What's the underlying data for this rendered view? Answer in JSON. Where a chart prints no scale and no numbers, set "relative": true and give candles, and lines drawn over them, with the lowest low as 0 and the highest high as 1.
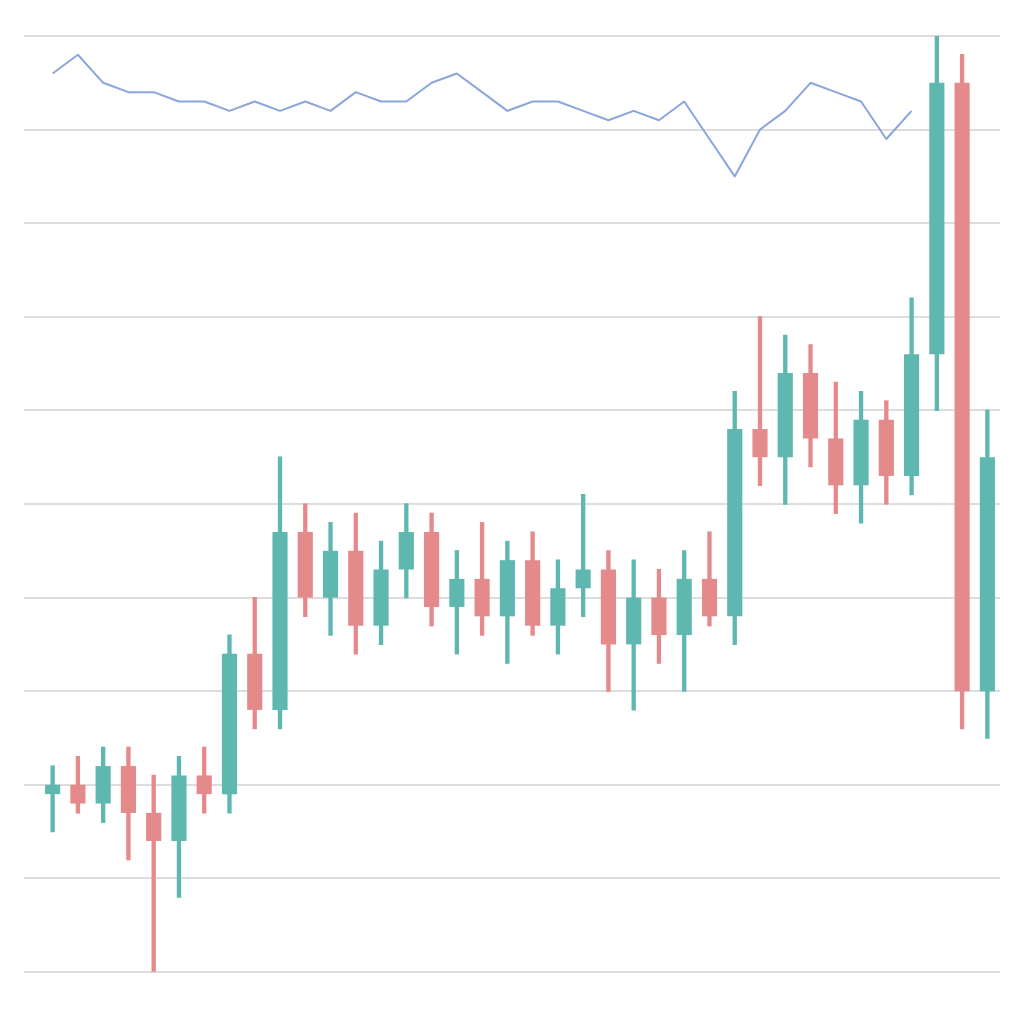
{
  "chart_data": {
    "type": "candlestick",
    "relative": true,
    "grid": "y",
    "categories": [
      null,
      null,
      null,
      null,
      null,
      null,
      null,
      null,
      null,
      null,
      null,
      null,
      null,
      null,
      null,
      null,
      null,
      null,
      null,
      null,
      null,
      null,
      null,
      null,
      null,
      null,
      null,
      null,
      null,
      null,
      null,
      null,
      null,
      null,
      null,
      null,
      null,
      null
    ],
    "ohlc": [
      [
        0.19,
        0.22,
        0.15,
        0.2
      ],
      [
        0.2,
        0.23,
        0.17,
        0.18
      ],
      [
        0.18,
        0.24,
        0.16,
        0.22
      ],
      [
        0.22,
        0.24,
        0.12,
        0.17
      ],
      [
        0.17,
        0.21,
        0,
        0.14
      ],
      [
        0.14,
        0.23,
        0.08,
        0.21
      ],
      [
        0.21,
        0.24,
        0.17,
        0.19
      ],
      [
        0.19,
        0.36,
        0.17,
        0.34
      ],
      [
        0.34,
        0.4,
        0.26,
        0.28
      ],
      [
        0.28,
        0.55,
        0.26,
        0.47
      ],
      [
        0.47,
        0.5,
        0.38,
        0.4
      ],
      [
        0.4,
        0.48,
        0.36,
        0.45
      ],
      [
        0.45,
        0.49,
        0.34,
        0.37
      ],
      [
        0.37,
        0.46,
        0.35,
        0.43
      ],
      [
        0.43,
        0.5,
        0.4,
        0.47
      ],
      [
        0.47,
        0.49,
        0.37,
        0.39
      ],
      [
        0.39,
        0.45,
        0.34,
        0.42
      ],
      [
        0.42,
        0.48,
        0.36,
        0.38
      ],
      [
        0.38,
        0.46,
        0.33,
        0.44
      ],
      [
        0.44,
        0.47,
        0.36,
        0.37
      ],
      [
        0.37,
        0.44,
        0.34,
        0.41
      ],
      [
        0.41,
        0.51,
        0.38,
        0.43
      ],
      [
        0.43,
        0.45,
        0.3,
        0.35
      ],
      [
        0.35,
        0.44,
        0.28,
        0.4
      ],
      [
        0.4,
        0.43,
        0.33,
        0.36
      ],
      [
        0.36,
        0.45,
        0.3,
        0.42
      ],
      [
        0.42,
        0.47,
        0.37,
        0.38
      ],
      [
        0.38,
        0.62,
        0.35,
        0.58
      ],
      [
        0.58,
        0.7,
        0.52,
        0.55
      ],
      [
        0.55,
        0.68,
        0.5,
        0.64
      ],
      [
        0.64,
        0.67,
        0.54,
        0.57
      ],
      [
        0.57,
        0.63,
        0.49,
        0.52
      ],
      [
        0.52,
        0.62,
        0.48,
        0.59
      ],
      [
        0.59,
        0.61,
        0.5,
        0.53
      ],
      [
        0.53,
        0.72,
        0.51,
        0.66
      ],
      [
        0.66,
        1,
        0.6,
        0.95
      ],
      [
        0.95,
        0.98,
        0.26,
        0.3
      ],
      [
        0.3,
        0.6,
        0.25,
        0.55
      ]
    ],
    "colors": [
      "#5fb8b0",
      "#e58a8a",
      "#5fb8b0",
      "#e58a8a",
      "#e58a8a",
      "#5fb8b0",
      "#e58a8a",
      "#5fb8b0",
      "#e58a8a",
      "#5fb8b0",
      "#e58a8a",
      "#5fb8b0",
      "#e58a8a",
      "#5fb8b0",
      "#5fb8b0",
      "#e58a8a",
      "#5fb8b0",
      "#e58a8a",
      "#5fb8b0",
      "#e58a8a",
      "#5fb8b0",
      "#5fb8b0",
      "#e58a8a",
      "#5fb8b0",
      "#e58a8a",
      "#5fb8b0",
      "#e58a8a",
      "#5fb8b0",
      "#e58a8a",
      "#5fb8b0",
      "#e58a8a",
      "#e58a8a",
      "#5fb8b0",
      "#e58a8a",
      "#5fb8b0",
      "#5fb8b0",
      "#e58a8a",
      "#5fb8b0"
    ],
    "series": [
      {
        "type": "line",
        "color": "#8aa6dc",
        "values": [
          0.96,
          0.98,
          0.95,
          0.94,
          0.94,
          0.93,
          0.93,
          0.92,
          0.93,
          0.92,
          0.93,
          0.92,
          0.94,
          0.93,
          0.93,
          0.95,
          0.96,
          0.94,
          0.92,
          0.93,
          0.93,
          0.92,
          0.91,
          0.92,
          0.91,
          0.93,
          0.89,
          0.85,
          0.9,
          0.92,
          0.95,
          0.94,
          0.93,
          0.89,
          0.92,
          null,
          null,
          null
        ]
      }
    ]
  }
}
